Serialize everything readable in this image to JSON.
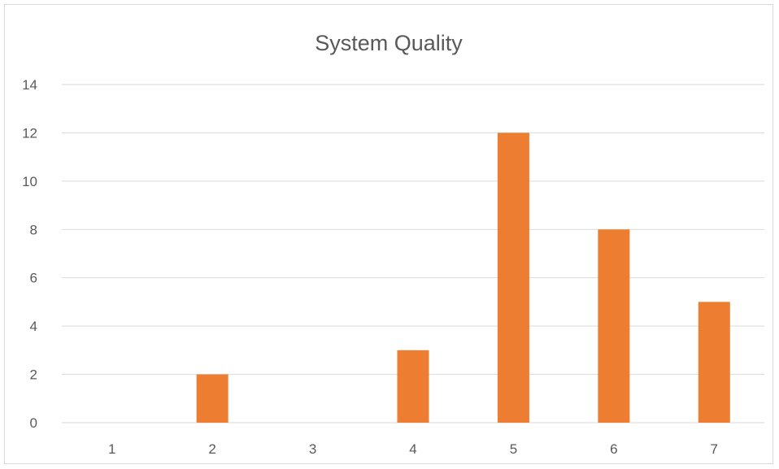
{
  "chart_data": {
    "type": "bar",
    "title": "System Quality",
    "categories": [
      "1",
      "2",
      "3",
      "4",
      "5",
      "6",
      "7"
    ],
    "values": [
      0,
      2,
      0,
      3,
      12,
      8,
      5
    ],
    "xlabel": "",
    "ylabel": "",
    "ylim": [
      0,
      14
    ],
    "yticks": [
      "0",
      "2",
      "4",
      "6",
      "8",
      "10",
      "12",
      "14"
    ],
    "grid": true,
    "legend": "none",
    "bar_color": "#ED7D31",
    "grid_color": "#D9D9D9"
  }
}
